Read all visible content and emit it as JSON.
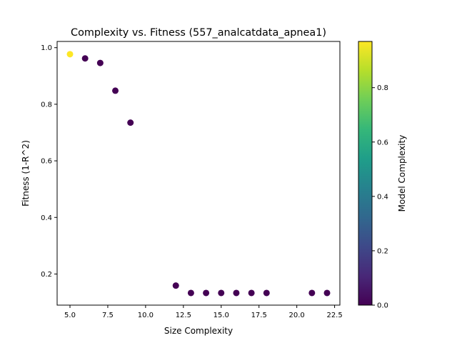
{
  "chart_data": {
    "type": "scatter",
    "title": "Complexity vs. Fitness (557_analcatdata_apnea1)",
    "xlabel": "Size Complexity",
    "ylabel": "Fitness (1-R^2)",
    "xlim": [
      4.15,
      22.85
    ],
    "ylim": [
      0.09,
      1.022
    ],
    "x_ticks": [
      5.0,
      7.5,
      10.0,
      12.5,
      15.0,
      17.5,
      20.0,
      22.5
    ],
    "x_tick_labels": [
      "5.0",
      "7.5",
      "10.0",
      "12.5",
      "15.0",
      "17.5",
      "20.0",
      "22.5"
    ],
    "y_ticks": [
      0.2,
      0.4,
      0.6,
      0.8,
      1.0
    ],
    "y_tick_labels": [
      "0.2",
      "0.4",
      "0.6",
      "0.8",
      "1.0"
    ],
    "grid": false,
    "points": [
      {
        "x": 5,
        "y": 0.977,
        "c": 0.97
      },
      {
        "x": 6,
        "y": 0.962,
        "c": 0.0
      },
      {
        "x": 7,
        "y": 0.946,
        "c": 0.0
      },
      {
        "x": 8,
        "y": 0.848,
        "c": 0.0
      },
      {
        "x": 9,
        "y": 0.735,
        "c": 0.0
      },
      {
        "x": 12,
        "y": 0.159,
        "c": 0.0
      },
      {
        "x": 13,
        "y": 0.133,
        "c": 0.0
      },
      {
        "x": 14,
        "y": 0.133,
        "c": 0.0
      },
      {
        "x": 15,
        "y": 0.133,
        "c": 0.0
      },
      {
        "x": 16,
        "y": 0.133,
        "c": 0.0
      },
      {
        "x": 17,
        "y": 0.133,
        "c": 0.0
      },
      {
        "x": 18,
        "y": 0.133,
        "c": 0.0
      },
      {
        "x": 21,
        "y": 0.133,
        "c": 0.0
      },
      {
        "x": 22,
        "y": 0.133,
        "c": 0.0
      }
    ],
    "colorbar": {
      "label": "Model Complexity",
      "range": [
        0.0,
        0.97
      ],
      "ticks": [
        0.0,
        0.2,
        0.4,
        0.6,
        0.8
      ],
      "tick_labels": [
        "0.0",
        "0.2",
        "0.4",
        "0.6",
        "0.8"
      ],
      "colormap": "viridis",
      "stops": [
        "#440154",
        "#482878",
        "#3e4989",
        "#31688e",
        "#26828e",
        "#1f9e89",
        "#35b779",
        "#6ece58",
        "#b5de2b",
        "#fde725"
      ]
    }
  }
}
